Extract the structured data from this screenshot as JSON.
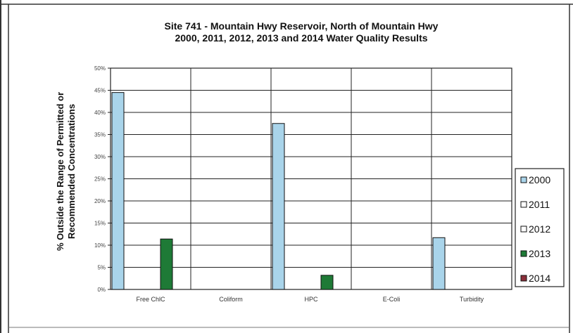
{
  "chart_data": {
    "type": "bar",
    "title_lines": [
      "Site 741 - Mountain Hwy Reservoir, North of Mountain Hwy",
      "2000, 2011, 2012, 2013 and 2014 Water Quality Results"
    ],
    "ylabel_lines": [
      "% Outside the Range of Permitted or",
      "Recommended Concentrations"
    ],
    "xlabel": "",
    "categories": [
      "Free ChlC",
      "Coliform",
      "HPC",
      "E-Coli",
      "Turbidity"
    ],
    "ylim": [
      0,
      50
    ],
    "yticks": [
      0,
      5,
      10,
      15,
      20,
      25,
      30,
      35,
      40,
      45,
      50
    ],
    "ytick_labels": [
      "0%",
      "5%",
      "10%",
      "15%",
      "20%",
      "25%",
      "30%",
      "35%",
      "40%",
      "45%",
      "50%"
    ],
    "grid": true,
    "legend_position": "right",
    "series": [
      {
        "name": "2000",
        "color": "#a9d4ea",
        "values": [
          44.5,
          0,
          37.5,
          0,
          11.7
        ]
      },
      {
        "name": "2011",
        "color": "#ffffff",
        "values": [
          0,
          0,
          0,
          0,
          0
        ]
      },
      {
        "name": "2012",
        "color": "#ffffff",
        "values": [
          0,
          0,
          0,
          0,
          0
        ]
      },
      {
        "name": "2013",
        "color": "#1e7a36",
        "values": [
          11.4,
          0,
          3.2,
          0,
          0
        ]
      },
      {
        "name": "2014",
        "color": "#8b2e3a",
        "values": [
          0,
          0,
          0,
          0,
          0
        ]
      }
    ]
  }
}
